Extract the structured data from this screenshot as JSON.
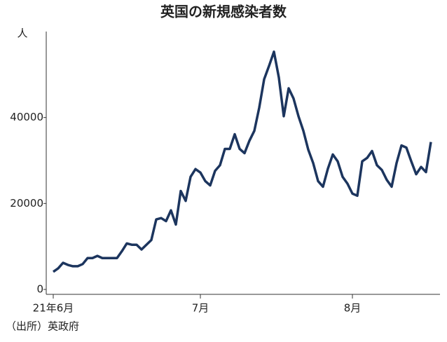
{
  "chart_data": {
    "type": "line",
    "title": "英国の新規感染者数",
    "y_label": "人",
    "source": "（出所）英政府",
    "categories": [
      "21年6月",
      null,
      null,
      null,
      null,
      null,
      null,
      null,
      null,
      null,
      null,
      null,
      null,
      null,
      null,
      null,
      null,
      null,
      null,
      null,
      null,
      null,
      null,
      null,
      null,
      null,
      null,
      null,
      null,
      null,
      "7月",
      null,
      null,
      null,
      null,
      null,
      null,
      null,
      null,
      null,
      null,
      null,
      null,
      null,
      null,
      null,
      null,
      null,
      null,
      null,
      null,
      null,
      null,
      null,
      null,
      null,
      null,
      null,
      null,
      null,
      null,
      "8月",
      null,
      null,
      null,
      null,
      null,
      null,
      null,
      null,
      null,
      null,
      null,
      null,
      null,
      null,
      null,
      null
    ],
    "series": [
      {
        "name": "新規感染者数",
        "color": "#1c355e",
        "values": [
          4100,
          4900,
          6200,
          5700,
          5400,
          5400,
          5900,
          7300,
          7300,
          7800,
          7300,
          7300,
          7300,
          7300,
          8900,
          10700,
          10400,
          10400,
          9300,
          10400,
          11500,
          16300,
          16600,
          15900,
          18400,
          15100,
          22900,
          20600,
          26200,
          28000,
          27200,
          25200,
          24200,
          27600,
          28900,
          32700,
          32700,
          36100,
          32700,
          31700,
          34600,
          36900,
          42300,
          48900,
          52000,
          55300,
          49300,
          40300,
          46800,
          44400,
          40300,
          36900,
          32500,
          29400,
          25200,
          23900,
          28100,
          31400,
          29800,
          26200,
          24600,
          22300,
          21800,
          29800,
          30600,
          32200,
          28900,
          27800,
          25500,
          23900,
          29400,
          33500,
          33000,
          29800,
          26800,
          28500,
          27300,
          34300
        ]
      }
    ],
    "ylim": [
      0,
      60000
    ],
    "yticks": [
      0,
      20000,
      40000
    ],
    "grid": false
  }
}
